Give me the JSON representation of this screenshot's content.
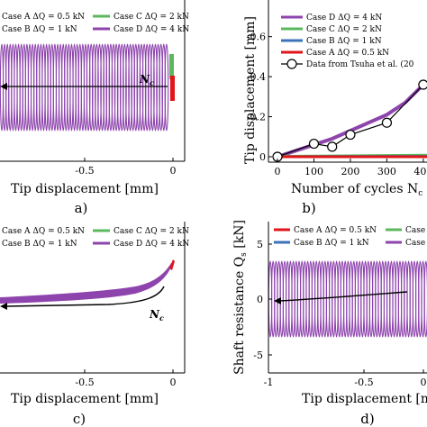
{
  "colors": {
    "caseA": "#e0161b",
    "caseB": "#3a73b8",
    "caseC": "#5cb85c",
    "caseD": "#8e44ad",
    "data": "#000000"
  },
  "legend_labels": {
    "caseA": "Case A ΔQ = 0.5 kN",
    "caseB": "Case B ΔQ = 1 kN",
    "caseC": "Case C ΔQ = 2 kN",
    "caseD": "Case D ΔQ = 4 kN",
    "data": "Data from Tsuha et al. (20"
  },
  "panel_labels": {
    "a": "a)",
    "b": "b)",
    "c": "c)",
    "d": "d)"
  },
  "annotations": {
    "nc_a": "N",
    "nc_a_sub": "c",
    "nc_c": "N",
    "nc_c_sub": "c"
  },
  "axes": {
    "a_xlabel": "Tip displacement [mm]",
    "b_xlabel": "Number of cycles N",
    "b_xlabel_sub": "c",
    "b_xlabel_tail": " [",
    "b_ylabel": "Tip displacement [mm]",
    "c_xlabel": "Tip displacement [mm]",
    "d_xlabel": "Tip displacement [mm]",
    "d_ylabel": "Shaft resistance Q",
    "d_ylabel_sub": "s",
    "d_ylabel_tail": " [kN]"
  },
  "ticks": {
    "a_x": [
      "-0.5",
      "0"
    ],
    "b_x": [
      "0",
      "100",
      "200",
      "300",
      "400"
    ],
    "b_y": [
      "-0.6",
      "-0.4",
      "-0.2",
      "0"
    ],
    "c_x": [
      "-0.5",
      "0"
    ],
    "d_x": [
      "-1",
      "-0.5",
      "0"
    ],
    "d_y": [
      "5",
      "0",
      "-5"
    ]
  },
  "chart_data": [
    {
      "panel": "a",
      "type": "line",
      "xlabel": "Tip displacement [mm]",
      "series": [
        {
          "name": "Case A ΔQ = 0.5 kN",
          "color": "#e0161b"
        },
        {
          "name": "Case B ΔQ = 1 kN",
          "color": "#3a73b8"
        },
        {
          "name": "Case C ΔQ = 2 kN",
          "color": "#5cb85c"
        },
        {
          "name": "Case D ΔQ = 4 kN",
          "color": "#8e44ad"
        }
      ],
      "xlim": [
        -1.0,
        0.05
      ]
    },
    {
      "panel": "b",
      "type": "line",
      "xlabel": "Number of cycles N_c",
      "ylabel": "Tip displacement [mm]",
      "xlim": [
        0,
        420
      ],
      "ylim": [
        -0.7,
        0.02
      ],
      "series": [
        {
          "name": "Case D ΔQ = 4 kN",
          "color": "#8e44ad",
          "x": [
            0,
            50,
            100,
            150,
            200,
            250,
            300,
            350,
            400
          ],
          "y": [
            0,
            -0.03,
            -0.06,
            -0.09,
            -0.13,
            -0.17,
            -0.21,
            -0.27,
            -0.36
          ]
        },
        {
          "name": "Case C ΔQ = 2 kN",
          "color": "#5cb85c",
          "x": [
            0,
            420
          ],
          "y": [
            -0.002,
            -0.008
          ]
        },
        {
          "name": "Case B ΔQ = 1 kN",
          "color": "#3a73b8",
          "x": [
            0,
            420
          ],
          "y": [
            0,
            -0.002
          ]
        },
        {
          "name": "Case A ΔQ = 0.5 kN",
          "color": "#e0161b",
          "x": [
            0,
            420
          ],
          "y": [
            0,
            0
          ]
        },
        {
          "name": "Data from Tsuha et al. (20",
          "color": "#000000",
          "x": [
            0,
            100,
            150,
            200,
            300,
            400
          ],
          "y": [
            0,
            -0.065,
            -0.05,
            -0.11,
            -0.17,
            -0.36
          ]
        }
      ]
    },
    {
      "panel": "c",
      "type": "line",
      "xlabel": "Tip displacement [mm]",
      "xlim": [
        -1.0,
        0.05
      ],
      "series": [
        {
          "name": "Case A ΔQ = 0.5 kN",
          "color": "#e0161b"
        },
        {
          "name": "Case B ΔQ = 1 kN",
          "color": "#3a73b8"
        },
        {
          "name": "Case C ΔQ = 2 kN",
          "color": "#5cb85c"
        },
        {
          "name": "Case D ΔQ = 4 kN",
          "color": "#8e44ad"
        }
      ]
    },
    {
      "panel": "d",
      "type": "line",
      "xlabel": "Tip displacement [mm]",
      "ylabel": "Shaft resistance Q_s [kN]",
      "xlim": [
        -1.0,
        0.05
      ],
      "ylim": [
        -6,
        6
      ],
      "series": [
        {
          "name": "Case A ΔQ = 0.5 kN",
          "color": "#e0161b"
        },
        {
          "name": "Case B ΔQ = 1 kN",
          "color": "#3a73b8"
        },
        {
          "name": "Case C ΔQ = 2 kN",
          "color": "#5cb85c"
        },
        {
          "name": "Case D ΔQ = 4 kN",
          "color": "#8e44ad"
        }
      ]
    }
  ]
}
